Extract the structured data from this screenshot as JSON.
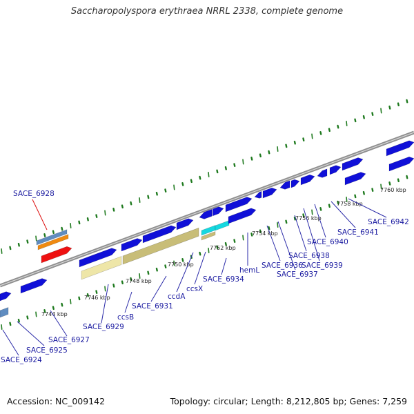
{
  "header": {
    "title": "Saccharopolyspora erythraea NRRL 2338, complete genome"
  },
  "footer": {
    "accession": "Accession: NC_009142",
    "summary": "Topology: circular; Length: 8,212,805 bp; Genes: 7,259"
  },
  "colors": {
    "backbone": "#8f8f8f",
    "tick": "#1f7a1f",
    "cds": "#1010d8",
    "label_default": "#1a1aa0",
    "label_highlight": "#dd1111",
    "leader": "#2a2aa8"
  },
  "scale_ticks": [
    {
      "label": "7744 kbp"
    },
    {
      "label": "7746 kbp"
    },
    {
      "label": "7748 kbp"
    },
    {
      "label": "7750 kbp"
    },
    {
      "label": "7752 kbp"
    },
    {
      "label": "7754 kbp"
    },
    {
      "label": "7756 kbp"
    },
    {
      "label": "7758 kbp"
    },
    {
      "label": "7760 kbp"
    }
  ],
  "gene_labels": [
    {
      "text": "SACE_6928",
      "highlight": true
    },
    {
      "text": "SACE_6924"
    },
    {
      "text": "SACE_6925"
    },
    {
      "text": "SACE_6927"
    },
    {
      "text": "SACE_6929"
    },
    {
      "text": "ccsB"
    },
    {
      "text": "SACE_6931"
    },
    {
      "text": "ccdA"
    },
    {
      "text": "ccsX"
    },
    {
      "text": "SACE_6934"
    },
    {
      "text": "hemL"
    },
    {
      "text": "SACE_6936"
    },
    {
      "text": "SACE_6937"
    },
    {
      "text": "SACE_6938"
    },
    {
      "text": "SACE_6939"
    },
    {
      "text": "SACE_6940"
    },
    {
      "text": "SACE_6941"
    },
    {
      "text": "SACE_6942"
    }
  ]
}
